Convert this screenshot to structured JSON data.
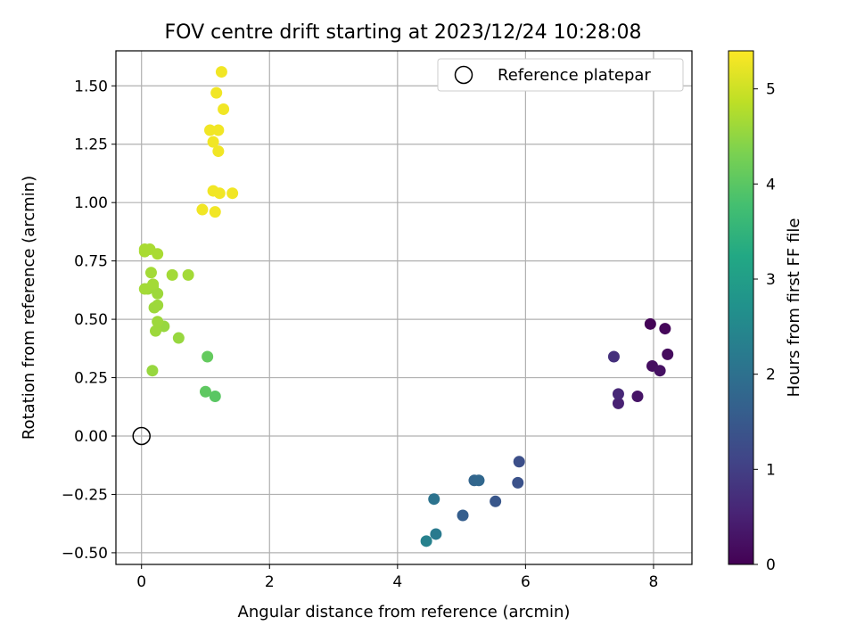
{
  "chart_data": {
    "type": "scatter",
    "title": "FOV centre drift starting at 2023/12/24 10:28:08",
    "xlabel": "Angular distance from reference (arcmin)",
    "ylabel": "Rotation from reference (arcmin)",
    "xlim": [
      -0.4,
      8.6
    ],
    "ylim": [
      -0.55,
      1.65
    ],
    "xticks": [
      0,
      2,
      4,
      6,
      8
    ],
    "yticks": [
      -0.5,
      -0.25,
      0.0,
      0.25,
      0.5,
      0.75,
      1.0,
      1.25,
      1.5
    ],
    "xtick_labels": [
      "0",
      "2",
      "4",
      "6",
      "8"
    ],
    "ytick_labels": [
      "−0.50",
      "−0.25",
      "0.00",
      "0.25",
      "0.50",
      "0.75",
      "1.00",
      "1.25",
      "1.50"
    ],
    "grid": true,
    "legend": {
      "label": "Reference platepar",
      "placement": "top-right"
    },
    "reference_point": {
      "x": 0,
      "y": 0
    },
    "colorbar": {
      "label": "Hours from first FF file",
      "colormap": "viridis",
      "min": 0,
      "max": 5.4,
      "ticks": [
        0,
        1,
        2,
        3,
        4,
        5
      ],
      "tick_labels": [
        "0",
        "1",
        "2",
        "3",
        "4",
        "5"
      ]
    },
    "points": [
      {
        "x": 7.95,
        "y": 0.48,
        "hours": 0.05
      },
      {
        "x": 8.18,
        "y": 0.46,
        "hours": 0.1
      },
      {
        "x": 8.22,
        "y": 0.35,
        "hours": 0.15
      },
      {
        "x": 7.98,
        "y": 0.3,
        "hours": 0.2
      },
      {
        "x": 8.1,
        "y": 0.28,
        "hours": 0.25
      },
      {
        "x": 7.75,
        "y": 0.17,
        "hours": 0.3
      },
      {
        "x": 7.45,
        "y": 0.14,
        "hours": 0.5
      },
      {
        "x": 7.45,
        "y": 0.18,
        "hours": 0.6
      },
      {
        "x": 7.38,
        "y": 0.34,
        "hours": 0.75
      },
      {
        "x": 5.9,
        "y": -0.11,
        "hours": 1.3
      },
      {
        "x": 5.88,
        "y": -0.2,
        "hours": 1.35
      },
      {
        "x": 5.53,
        "y": -0.28,
        "hours": 1.45
      },
      {
        "x": 5.02,
        "y": -0.34,
        "hours": 1.6
      },
      {
        "x": 5.2,
        "y": -0.19,
        "hours": 1.75
      },
      {
        "x": 5.27,
        "y": -0.19,
        "hours": 1.8
      },
      {
        "x": 4.57,
        "y": -0.27,
        "hours": 2.05
      },
      {
        "x": 4.6,
        "y": -0.42,
        "hours": 2.2
      },
      {
        "x": 4.45,
        "y": -0.45,
        "hours": 2.35
      },
      {
        "x": 1.15,
        "y": 0.17,
        "hours": 4.0
      },
      {
        "x": 1.0,
        "y": 0.19,
        "hours": 4.05
      },
      {
        "x": 1.03,
        "y": 0.34,
        "hours": 4.1
      },
      {
        "x": 0.17,
        "y": 0.28,
        "hours": 4.55
      },
      {
        "x": 0.58,
        "y": 0.42,
        "hours": 4.55
      },
      {
        "x": 0.35,
        "y": 0.47,
        "hours": 4.55
      },
      {
        "x": 0.22,
        "y": 0.45,
        "hours": 4.6
      },
      {
        "x": 0.25,
        "y": 0.49,
        "hours": 4.6
      },
      {
        "x": 0.2,
        "y": 0.55,
        "hours": 4.6
      },
      {
        "x": 0.25,
        "y": 0.56,
        "hours": 4.6
      },
      {
        "x": 0.25,
        "y": 0.61,
        "hours": 4.6
      },
      {
        "x": 0.18,
        "y": 0.64,
        "hours": 4.6
      },
      {
        "x": 0.1,
        "y": 0.63,
        "hours": 4.6
      },
      {
        "x": 0.05,
        "y": 0.63,
        "hours": 4.65
      },
      {
        "x": 0.18,
        "y": 0.65,
        "hours": 4.65
      },
      {
        "x": 0.15,
        "y": 0.7,
        "hours": 4.65
      },
      {
        "x": 0.48,
        "y": 0.69,
        "hours": 4.65
      },
      {
        "x": 0.73,
        "y": 0.69,
        "hours": 4.65
      },
      {
        "x": 0.05,
        "y": 0.79,
        "hours": 4.7
      },
      {
        "x": 0.05,
        "y": 0.8,
        "hours": 4.7
      },
      {
        "x": 0.13,
        "y": 0.8,
        "hours": 4.7
      },
      {
        "x": 0.25,
        "y": 0.78,
        "hours": 4.7
      },
      {
        "x": 0.95,
        "y": 0.97,
        "hours": 5.3
      },
      {
        "x": 1.15,
        "y": 0.96,
        "hours": 5.3
      },
      {
        "x": 1.12,
        "y": 1.05,
        "hours": 5.3
      },
      {
        "x": 1.22,
        "y": 1.04,
        "hours": 5.3
      },
      {
        "x": 1.42,
        "y": 1.04,
        "hours": 5.3
      },
      {
        "x": 1.2,
        "y": 1.22,
        "hours": 5.3
      },
      {
        "x": 1.12,
        "y": 1.26,
        "hours": 5.3
      },
      {
        "x": 1.07,
        "y": 1.31,
        "hours": 5.3
      },
      {
        "x": 1.2,
        "y": 1.31,
        "hours": 5.3
      },
      {
        "x": 1.28,
        "y": 1.4,
        "hours": 5.3
      },
      {
        "x": 1.17,
        "y": 1.47,
        "hours": 5.3
      },
      {
        "x": 1.25,
        "y": 1.56,
        "hours": 5.3
      }
    ]
  }
}
